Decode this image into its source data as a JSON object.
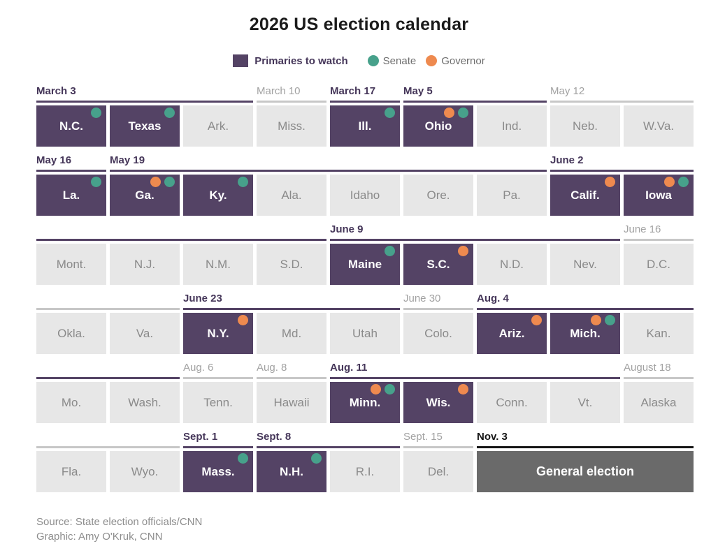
{
  "title": "2026 US election calendar",
  "legend": {
    "primaries_label": "Primaries to watch",
    "senate_label": "Senate",
    "governor_label": "Governor"
  },
  "colors": {
    "purple": "#544365",
    "purple_text": "#453659",
    "teal": "#47a18b",
    "orange": "#ee8a4f",
    "tile_gray": "#e7e7e7",
    "tile_gray_text": "#8a8a8a",
    "gray_label": "#a2a2a2",
    "gray_rule": "#c7c7c7",
    "general_bg": "#6a6a6a",
    "black": "#151515"
  },
  "calendar": {
    "rows": [
      {
        "groups": [
          {
            "label": "March 3",
            "style": "purple",
            "start": 1,
            "end": 3
          },
          {
            "label": "March 10",
            "style": "gray",
            "start": 4,
            "end": 4
          },
          {
            "label": "March 17",
            "style": "purple",
            "start": 5,
            "end": 5
          },
          {
            "label": "May 5",
            "style": "purple",
            "start": 6,
            "end": 7
          },
          {
            "label": "May 12",
            "style": "gray",
            "start": 8,
            "end": 9
          }
        ],
        "tiles": [
          {
            "name": "N.C.",
            "type": "watch",
            "dots": [
              "senate"
            ]
          },
          {
            "name": "Texas",
            "type": "watch",
            "dots": [
              "senate"
            ]
          },
          {
            "name": "Ark.",
            "type": "plain"
          },
          {
            "name": "Miss.",
            "type": "plain"
          },
          {
            "name": "Ill.",
            "type": "watch",
            "dots": [
              "senate"
            ]
          },
          {
            "name": "Ohio",
            "type": "watch",
            "dots": [
              "governor",
              "senate"
            ]
          },
          {
            "name": "Ind.",
            "type": "plain"
          },
          {
            "name": "Neb.",
            "type": "plain"
          },
          {
            "name": "W.Va.",
            "type": "plain"
          }
        ]
      },
      {
        "groups": [
          {
            "label": "May 16",
            "style": "purple",
            "start": 1,
            "end": 1
          },
          {
            "label": "May 19",
            "style": "purple",
            "start": 2,
            "end": 7
          },
          {
            "label": "June 2",
            "style": "purple",
            "start": 8,
            "end": 9
          }
        ],
        "tiles": [
          {
            "name": "La.",
            "type": "watch",
            "dots": [
              "senate"
            ]
          },
          {
            "name": "Ga.",
            "type": "watch",
            "dots": [
              "governor",
              "senate"
            ]
          },
          {
            "name": "Ky.",
            "type": "watch",
            "dots": [
              "senate"
            ]
          },
          {
            "name": "Ala.",
            "type": "plain"
          },
          {
            "name": "Idaho",
            "type": "plain"
          },
          {
            "name": "Ore.",
            "type": "plain"
          },
          {
            "name": "Pa.",
            "type": "plain"
          },
          {
            "name": "Calif.",
            "type": "watch",
            "dots": [
              "governor"
            ]
          },
          {
            "name": "Iowa",
            "type": "watch",
            "dots": [
              "governor",
              "senate"
            ]
          }
        ]
      },
      {
        "groups": [
          {
            "label": "",
            "style": "purple",
            "start": 1,
            "end": 4
          },
          {
            "label": "June 9",
            "style": "purple",
            "start": 5,
            "end": 8
          },
          {
            "label": "June 16",
            "style": "gray",
            "start": 9,
            "end": 9
          }
        ],
        "tiles": [
          {
            "name": "Mont.",
            "type": "plain"
          },
          {
            "name": "N.J.",
            "type": "plain"
          },
          {
            "name": "N.M.",
            "type": "plain"
          },
          {
            "name": "S.D.",
            "type": "plain"
          },
          {
            "name": "Maine",
            "type": "watch",
            "dots": [
              "senate"
            ]
          },
          {
            "name": "S.C.",
            "type": "watch",
            "dots": [
              "governor"
            ]
          },
          {
            "name": "N.D.",
            "type": "plain"
          },
          {
            "name": "Nev.",
            "type": "plain"
          },
          {
            "name": "D.C.",
            "type": "plain"
          }
        ]
      },
      {
        "groups": [
          {
            "label": "",
            "style": "gray",
            "start": 1,
            "end": 2
          },
          {
            "label": "June 23",
            "style": "purple",
            "start": 3,
            "end": 5
          },
          {
            "label": "June 30",
            "style": "gray",
            "start": 6,
            "end": 6
          },
          {
            "label": "Aug. 4",
            "style": "purple",
            "start": 7,
            "end": 9
          }
        ],
        "tiles": [
          {
            "name": "Okla.",
            "type": "plain"
          },
          {
            "name": "Va.",
            "type": "plain"
          },
          {
            "name": "N.Y.",
            "type": "watch",
            "dots": [
              "governor"
            ]
          },
          {
            "name": "Md.",
            "type": "plain"
          },
          {
            "name": "Utah",
            "type": "plain"
          },
          {
            "name": "Colo.",
            "type": "plain"
          },
          {
            "name": "Ariz.",
            "type": "watch",
            "dots": [
              "governor"
            ]
          },
          {
            "name": "Mich.",
            "type": "watch",
            "dots": [
              "governor",
              "senate"
            ]
          },
          {
            "name": "Kan.",
            "type": "plain"
          }
        ]
      },
      {
        "groups": [
          {
            "label": "",
            "style": "purple",
            "start": 1,
            "end": 2
          },
          {
            "label": "Aug. 6",
            "style": "gray",
            "start": 3,
            "end": 3
          },
          {
            "label": "Aug. 8",
            "style": "gray",
            "start": 4,
            "end": 4
          },
          {
            "label": "Aug. 11",
            "style": "purple",
            "start": 5,
            "end": 8
          },
          {
            "label": "August 18",
            "style": "gray",
            "start": 9,
            "end": 9
          }
        ],
        "tiles": [
          {
            "name": "Mo.",
            "type": "plain"
          },
          {
            "name": "Wash.",
            "type": "plain"
          },
          {
            "name": "Tenn.",
            "type": "plain"
          },
          {
            "name": "Hawaii",
            "type": "plain"
          },
          {
            "name": "Minn.",
            "type": "watch",
            "dots": [
              "governor",
              "senate"
            ]
          },
          {
            "name": "Wis.",
            "type": "watch",
            "dots": [
              "governor"
            ]
          },
          {
            "name": "Conn.",
            "type": "plain"
          },
          {
            "name": "Vt.",
            "type": "plain"
          },
          {
            "name": "Alaska",
            "type": "plain"
          }
        ]
      },
      {
        "groups": [
          {
            "label": "",
            "style": "gray",
            "start": 1,
            "end": 2
          },
          {
            "label": "Sept. 1",
            "style": "purple",
            "start": 3,
            "end": 3
          },
          {
            "label": "Sept. 8",
            "style": "purple",
            "start": 4,
            "end": 5
          },
          {
            "label": "Sept. 15",
            "style": "gray",
            "start": 6,
            "end": 6
          },
          {
            "label": "Nov. 3",
            "style": "black",
            "start": 7,
            "end": 9
          }
        ],
        "tiles": [
          {
            "name": "Fla.",
            "type": "plain"
          },
          {
            "name": "Wyo.",
            "type": "plain"
          },
          {
            "name": "Mass.",
            "type": "watch",
            "dots": [
              "senate"
            ]
          },
          {
            "name": "N.H.",
            "type": "watch",
            "dots": [
              "senate"
            ]
          },
          {
            "name": "R.I.",
            "type": "plain"
          },
          {
            "name": "Del.",
            "type": "plain"
          },
          {
            "name": "General election",
            "type": "general",
            "span": 3
          }
        ]
      }
    ]
  },
  "chart_data": {
    "type": "table",
    "title": "2026 US election calendar",
    "legend": [
      "Primaries to watch",
      "Senate",
      "Governor"
    ],
    "columns": [
      "date",
      "state",
      "primary_to_watch",
      "senate_race",
      "governor_race"
    ],
    "rows": [
      [
        "March 3",
        "N.C.",
        true,
        true,
        false
      ],
      [
        "March 3",
        "Texas",
        true,
        true,
        false
      ],
      [
        "March 3",
        "Ark.",
        false,
        false,
        false
      ],
      [
        "March 10",
        "Miss.",
        false,
        false,
        false
      ],
      [
        "March 17",
        "Ill.",
        true,
        true,
        false
      ],
      [
        "May 5",
        "Ohio",
        true,
        true,
        true
      ],
      [
        "May 5",
        "Ind.",
        false,
        false,
        false
      ],
      [
        "May 12",
        "Neb.",
        false,
        false,
        false
      ],
      [
        "May 12",
        "W.Va.",
        false,
        false,
        false
      ],
      [
        "May 16",
        "La.",
        true,
        true,
        false
      ],
      [
        "May 19",
        "Ga.",
        true,
        true,
        true
      ],
      [
        "May 19",
        "Ky.",
        true,
        true,
        false
      ],
      [
        "May 19",
        "Ala.",
        false,
        false,
        false
      ],
      [
        "May 19",
        "Idaho",
        false,
        false,
        false
      ],
      [
        "May 19",
        "Ore.",
        false,
        false,
        false
      ],
      [
        "May 19",
        "Pa.",
        false,
        false,
        false
      ],
      [
        "June 2",
        "Calif.",
        true,
        false,
        true
      ],
      [
        "June 2",
        "Iowa",
        true,
        true,
        true
      ],
      [
        "June 2",
        "Mont.",
        false,
        false,
        false
      ],
      [
        "June 2",
        "N.J.",
        false,
        false,
        false
      ],
      [
        "June 2",
        "N.M.",
        false,
        false,
        false
      ],
      [
        "June 2",
        "S.D.",
        false,
        false,
        false
      ],
      [
        "June 9",
        "Maine",
        true,
        true,
        false
      ],
      [
        "June 9",
        "S.C.",
        true,
        false,
        true
      ],
      [
        "June 9",
        "N.D.",
        false,
        false,
        false
      ],
      [
        "June 9",
        "Nev.",
        false,
        false,
        false
      ],
      [
        "June 16",
        "D.C.",
        false,
        false,
        false
      ],
      [
        "June 16",
        "Okla.",
        false,
        false,
        false
      ],
      [
        "June 16",
        "Va.",
        false,
        false,
        false
      ],
      [
        "June 23",
        "N.Y.",
        true,
        false,
        true
      ],
      [
        "June 23",
        "Md.",
        false,
        false,
        false
      ],
      [
        "June 23",
        "Utah",
        false,
        false,
        false
      ],
      [
        "June 30",
        "Colo.",
        false,
        false,
        false
      ],
      [
        "Aug. 4",
        "Ariz.",
        true,
        false,
        true
      ],
      [
        "Aug. 4",
        "Mich.",
        true,
        true,
        true
      ],
      [
        "Aug. 4",
        "Kan.",
        false,
        false,
        false
      ],
      [
        "Aug. 4",
        "Mo.",
        false,
        false,
        false
      ],
      [
        "Aug. 4",
        "Wash.",
        false,
        false,
        false
      ],
      [
        "Aug. 6",
        "Tenn.",
        false,
        false,
        false
      ],
      [
        "Aug. 8",
        "Hawaii",
        false,
        false,
        false
      ],
      [
        "Aug. 11",
        "Minn.",
        true,
        true,
        true
      ],
      [
        "Aug. 11",
        "Wis.",
        true,
        false,
        true
      ],
      [
        "Aug. 11",
        "Conn.",
        false,
        false,
        false
      ],
      [
        "Aug. 11",
        "Vt.",
        false,
        false,
        false
      ],
      [
        "August 18",
        "Alaska",
        false,
        false,
        false
      ],
      [
        "August 18",
        "Fla.",
        false,
        false,
        false
      ],
      [
        "August 18",
        "Wyo.",
        false,
        false,
        false
      ],
      [
        "Sept. 1",
        "Mass.",
        true,
        true,
        false
      ],
      [
        "Sept. 8",
        "N.H.",
        true,
        true,
        false
      ],
      [
        "Sept. 8",
        "R.I.",
        false,
        false,
        false
      ],
      [
        "Sept. 15",
        "Del.",
        false,
        false,
        false
      ],
      [
        "Nov. 3",
        "General election",
        false,
        false,
        false
      ]
    ]
  },
  "footer": {
    "source": "Source: State election officials/CNN",
    "credit": "Graphic: Amy O'Kruk, CNN"
  }
}
